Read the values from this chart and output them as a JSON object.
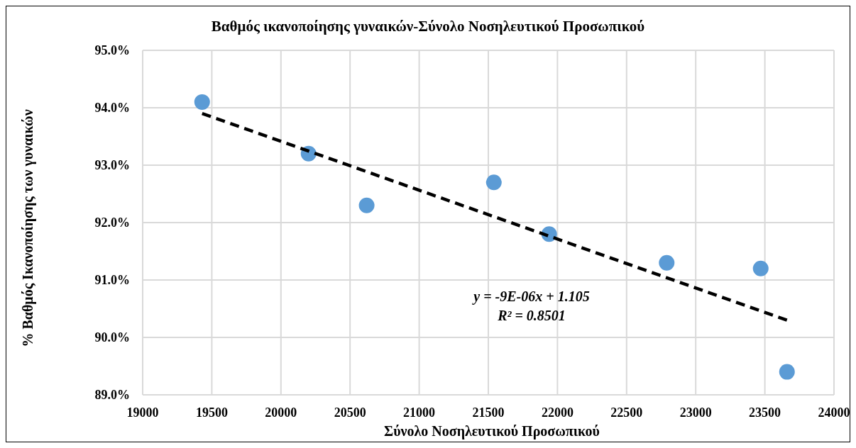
{
  "chart_data": {
    "type": "scatter",
    "title": "Βαθμός ικανοποίησης γυναικών-Σύνολο Νοσηλευτικού Προσωπικού",
    "xlabel": "Σύνολο Νοσηλευτικού Προσωπικού",
    "ylabel": "% Βαθμός Ικανοποίησης των γυναικών",
    "series": [
      {
        "color": "#5b9bd5",
        "marker": "circle",
        "x": [
          19430,
          20200,
          20620,
          21540,
          21940,
          22790,
          23470,
          23660
        ],
        "values": [
          94.1,
          93.2,
          92.3,
          92.7,
          91.8,
          91.3,
          91.2,
          89.4
        ]
      },
      {
        "type": "line",
        "color": "#000000",
        "line_style": "dashed",
        "x": [
          19430,
          23660
        ],
        "values": [
          93.9,
          90.3
        ]
      }
    ],
    "xlim": [
      19000,
      24000
    ],
    "xticks": [
      19000,
      19500,
      20000,
      20500,
      21000,
      21500,
      22000,
      22500,
      23000,
      23500,
      24000
    ],
    "ylim": [
      89,
      95
    ],
    "yticks": [
      {
        "value": 89,
        "label": "89.0%"
      },
      {
        "value": 90,
        "label": "90.0%"
      },
      {
        "value": 91,
        "label": "91.0%"
      },
      {
        "value": 92,
        "label": "92.0%"
      },
      {
        "value": 93,
        "label": "93.0%"
      },
      {
        "value": 94,
        "label": "94.0%"
      },
      {
        "value": 95,
        "label": "95.0%"
      }
    ],
    "grid": true,
    "annotations": [
      "y = -9E-06x + 1.105",
      "R² = 0.8501"
    ]
  }
}
